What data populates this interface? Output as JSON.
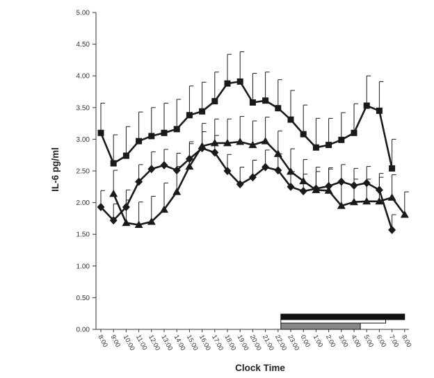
{
  "chart_data": {
    "type": "line",
    "xlabel": "Clock Time",
    "ylabel": "IL-6 pg/ml",
    "ylim": [
      0,
      5
    ],
    "yticks": [
      "0.00",
      "0.50",
      "1.00",
      "1.50",
      "2.00",
      "2.50",
      "3.00",
      "3.50",
      "4.00",
      "4.50",
      "5.00"
    ],
    "categories": [
      "8:00",
      "9:00",
      "10:00",
      "11:00",
      "12:00",
      "13:00",
      "14:00",
      "15:00",
      "16:00",
      "17:00",
      "18:00",
      "19:00",
      "20:00",
      "21:00",
      "22:00",
      "23:00",
      "0:00",
      "1:00",
      "2:00",
      "3:00",
      "4:00",
      "5:00",
      "6:00",
      "7:00",
      "8:00"
    ],
    "grid": false,
    "series": [
      {
        "marker": "square",
        "color": "#1a1a1a",
        "values": [
          3.1,
          2.62,
          2.74,
          2.97,
          3.05,
          3.1,
          3.16,
          3.38,
          3.44,
          3.6,
          3.88,
          3.91,
          3.58,
          3.61,
          3.49,
          3.31,
          3.08,
          2.87,
          2.91,
          2.99,
          3.1,
          3.53,
          3.45,
          2.54,
          null
        ],
        "errors": [
          0.47,
          0.45,
          0.46,
          0.46,
          0.45,
          0.47,
          0.47,
          0.46,
          0.46,
          0.46,
          0.46,
          0.47,
          0.46,
          0.45,
          0.45,
          0.46,
          0.46,
          0.46,
          0.42,
          0.43,
          0.46,
          0.47,
          0.46,
          0.46,
          null
        ]
      },
      {
        "marker": "triangle",
        "color": "#1a1a1a",
        "values": [
          null,
          2.14,
          1.68,
          1.65,
          1.7,
          1.89,
          2.17,
          2.57,
          2.89,
          2.94,
          2.94,
          2.96,
          2.91,
          2.97,
          2.77,
          2.49,
          2.34,
          2.2,
          2.19,
          1.95,
          2.01,
          2.02,
          2.02,
          2.08,
          1.81
        ],
        "errors": [
          null,
          0.37,
          0.36,
          0.36,
          0.4,
          0.42,
          0.4,
          0.36,
          0.36,
          0.38,
          0.38,
          0.4,
          0.38,
          0.38,
          0.36,
          0.36,
          0.34,
          0.36,
          0.36,
          0.36,
          0.36,
          0.35,
          0.38,
          0.36,
          0.36
        ]
      },
      {
        "marker": "diamond",
        "color": "#1a1a1a",
        "values": [
          1.93,
          1.72,
          1.93,
          2.33,
          2.53,
          2.59,
          2.51,
          2.69,
          2.86,
          2.79,
          2.5,
          2.29,
          2.4,
          2.56,
          2.51,
          2.25,
          2.18,
          2.22,
          2.26,
          2.33,
          2.27,
          2.31,
          2.2,
          1.57,
          null
        ],
        "errors": [
          0.26,
          0.26,
          0.27,
          0.27,
          0.27,
          0.25,
          0.27,
          0.27,
          0.26,
          0.27,
          0.26,
          0.27,
          0.27,
          0.27,
          0.26,
          0.24,
          0.27,
          0.27,
          0.27,
          0.27,
          0.27,
          0.26,
          0.26,
          0.24,
          null
        ]
      }
    ],
    "sleep_bars": [
      {
        "from": "22:00",
        "to": "8:00",
        "fill": "#111111"
      },
      {
        "from": "22:00",
        "to": "6:30",
        "fill": "#ffffff"
      },
      {
        "from": "22:00",
        "to": "4:30",
        "fill": "#888888"
      }
    ]
  }
}
